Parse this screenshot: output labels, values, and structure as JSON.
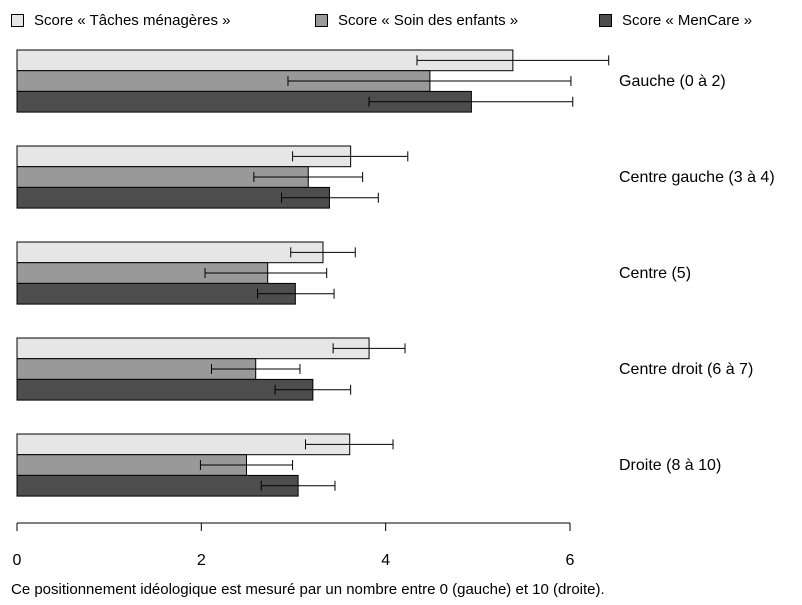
{
  "legend": {
    "items": [
      {
        "label": "Score « Tâches ménagères »",
        "color": "#e6e6e6"
      },
      {
        "label": "Score « Soin des enfants »",
        "color": "#999999"
      },
      {
        "label": "Score « MenCare »",
        "color": "#4d4d4d"
      }
    ]
  },
  "caption": "Ce positionnement idéologique est mesuré par un nombre entre 0 (gauche) et 10 (droite).",
  "chart_data": {
    "type": "bar",
    "orientation": "horizontal",
    "categories": [
      "Gauche (0 à 2)",
      "Centre gauche (3 à 4)",
      "Centre (5)",
      "Centre droit (6 à 7)",
      "Droite (8 à 10)"
    ],
    "series": [
      {
        "name": "Score « Tâches ménagères »",
        "color": "#e6e6e6",
        "values": [
          5.38,
          3.62,
          3.32,
          3.82,
          3.61
        ],
        "err_low": [
          4.34,
          2.99,
          2.97,
          3.43,
          3.13
        ],
        "err_high": [
          6.42,
          4.24,
          3.67,
          4.21,
          4.08
        ]
      },
      {
        "name": "Score « Soin des enfants »",
        "color": "#999999",
        "values": [
          4.48,
          3.16,
          2.72,
          2.59,
          2.49
        ],
        "err_low": [
          2.94,
          2.57,
          2.04,
          2.11,
          1.99
        ],
        "err_high": [
          6.01,
          3.75,
          3.36,
          3.07,
          2.99
        ]
      },
      {
        "name": "Score « MenCare »",
        "color": "#4d4d4d",
        "values": [
          4.93,
          3.39,
          3.02,
          3.21,
          3.05
        ],
        "err_low": [
          3.82,
          2.87,
          2.61,
          2.8,
          2.65
        ],
        "err_high": [
          6.03,
          3.92,
          3.44,
          3.62,
          3.45
        ]
      }
    ],
    "xlim": [
      0,
      6
    ],
    "xticks": [
      0,
      2,
      4,
      6
    ],
    "legend_position": "top",
    "grid": false
  }
}
